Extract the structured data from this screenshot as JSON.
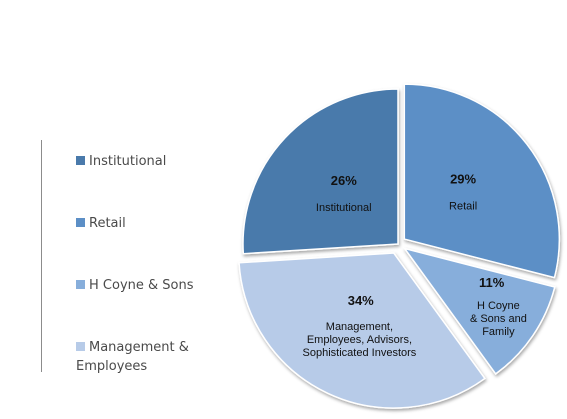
{
  "chart_data": {
    "type": "pie",
    "categories": [
      "Institutional",
      "Retail",
      "H Coyne & Sons",
      "Management & Employees"
    ],
    "values": [
      26,
      29,
      11,
      34
    ],
    "value_labels": [
      "26%",
      "29%",
      "11%",
      "34%"
    ],
    "slice_labels": [
      [
        "Institutional"
      ],
      [
        "Retail"
      ],
      [
        "H Coyne",
        "& Sons and",
        "Family"
      ],
      [
        "Management,",
        "Employees, Advisors,",
        "Sophisticated Investors"
      ]
    ],
    "legend": [
      [
        "Institutional"
      ],
      [
        "Retail"
      ],
      [
        "H Coyne & Sons"
      ],
      [
        "Management &",
        "Employees"
      ]
    ],
    "legend_position": "left",
    "colors": [
      "#4a7aab",
      "#5c8fc6",
      "#87aedb",
      "#b7cbe8"
    ]
  }
}
